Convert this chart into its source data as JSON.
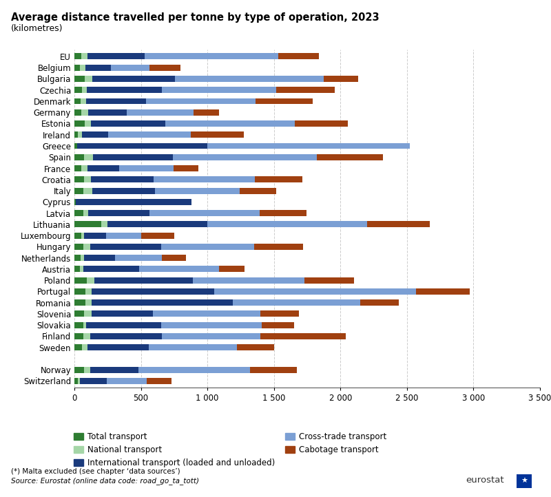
{
  "title": "Average distance travelled per tonne by type of operation, 2023",
  "subtitle": "(kilometres)",
  "countries": [
    "EU",
    "Belgium",
    "Bulgaria",
    "Czechia",
    "Denmark",
    "Germany",
    "Estonia",
    "Ireland",
    "Greece",
    "Spain",
    "France",
    "Croatia",
    "Italy",
    "Cyprus",
    "Latvia",
    "Lithuania",
    "Luxembourg",
    "Hungary",
    "Netherlands",
    "Austria",
    "Poland",
    "Portugal",
    "Romania",
    "Slovenia",
    "Slovakia",
    "Finland",
    "Sweden",
    "",
    "Norway",
    "Switzerland"
  ],
  "total_transport": [
    50,
    40,
    80,
    55,
    45,
    50,
    80,
    25,
    20,
    75,
    50,
    75,
    65,
    10,
    65,
    200,
    50,
    65,
    45,
    40,
    95,
    85,
    85,
    75,
    65,
    65,
    55,
    0,
    75,
    25
  ],
  "national_transport": [
    50,
    45,
    55,
    40,
    45,
    55,
    45,
    30,
    0,
    65,
    50,
    50,
    70,
    0,
    40,
    50,
    25,
    55,
    30,
    25,
    55,
    45,
    45,
    55,
    25,
    55,
    45,
    0,
    45,
    18
  ],
  "international_transport": [
    430,
    190,
    620,
    560,
    450,
    290,
    560,
    200,
    980,
    600,
    235,
    470,
    470,
    870,
    460,
    750,
    165,
    530,
    230,
    420,
    740,
    920,
    1060,
    460,
    560,
    540,
    460,
    0,
    360,
    200
  ],
  "cross_trade_transport": [
    1000,
    290,
    1120,
    860,
    820,
    500,
    970,
    620,
    1520,
    1080,
    410,
    760,
    640,
    0,
    830,
    1200,
    260,
    700,
    350,
    600,
    840,
    1520,
    960,
    810,
    760,
    740,
    660,
    0,
    840,
    300
  ],
  "cabotage_transport": [
    310,
    230,
    260,
    440,
    430,
    190,
    400,
    400,
    0,
    500,
    185,
    360,
    270,
    0,
    350,
    470,
    250,
    370,
    185,
    195,
    370,
    400,
    290,
    290,
    240,
    640,
    280,
    0,
    350,
    185
  ],
  "colors": {
    "total": "#2e7d32",
    "national": "#a5d6a7",
    "international": "#1a3a7c",
    "cross_trade": "#7b9fd4",
    "cabotage": "#a04010"
  },
  "xlim": [
    0,
    3500
  ],
  "xticks": [
    0,
    500,
    1000,
    1500,
    2000,
    2500,
    3000,
    3500
  ],
  "xticklabels": [
    "0",
    "500",
    "1 000",
    "1 500",
    "2 000",
    "2 500",
    "3 000",
    "3 500"
  ],
  "footnote": "(*) Malta excluded (see chapter ‘data sources’)",
  "source": "Source: Eurostat (online data code: road_go_ta_tott)",
  "legend_order": [
    "total",
    "national",
    "international",
    "cross_trade",
    "cabotage"
  ],
  "legend_labels": [
    "Total transport",
    "National transport",
    "International transport (loaded and unloaded)",
    "Cross-trade transport",
    "Cabotage transport"
  ]
}
